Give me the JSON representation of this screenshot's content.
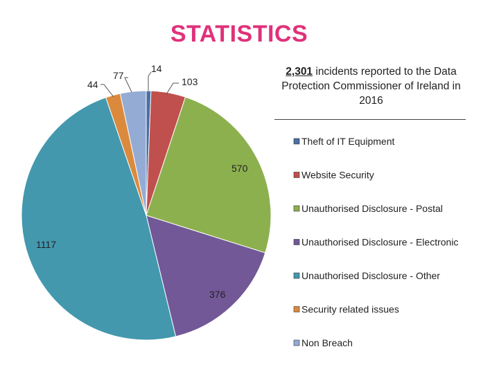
{
  "title": "STATISTICS",
  "subtitle": {
    "total": "2,301",
    "text": " incidents reported to the Data Protection Commissioner of Ireland in 2016"
  },
  "chart_data": {
    "type": "pie",
    "title": "STATISTICS",
    "legend_position": "right",
    "slices": [
      {
        "label": "Theft of IT Equipment",
        "value": 14,
        "color": "#4a6fa5"
      },
      {
        "label": "Website Security",
        "value": 103,
        "color": "#c0504d"
      },
      {
        "label": "Unauthorised Disclosure - Postal",
        "value": 570,
        "color": "#8db04f"
      },
      {
        "label": "Unauthorised Disclosure - Electronic",
        "value": 376,
        "color": "#725897"
      },
      {
        "label": "Unauthorised Disclosure - Other",
        "value": 1117,
        "color": "#4398ae"
      },
      {
        "label": "Security related issues",
        "value": 44,
        "color": "#db8a3d"
      },
      {
        "label": "Non Breach",
        "value": 77,
        "color": "#94abd4"
      }
    ]
  }
}
